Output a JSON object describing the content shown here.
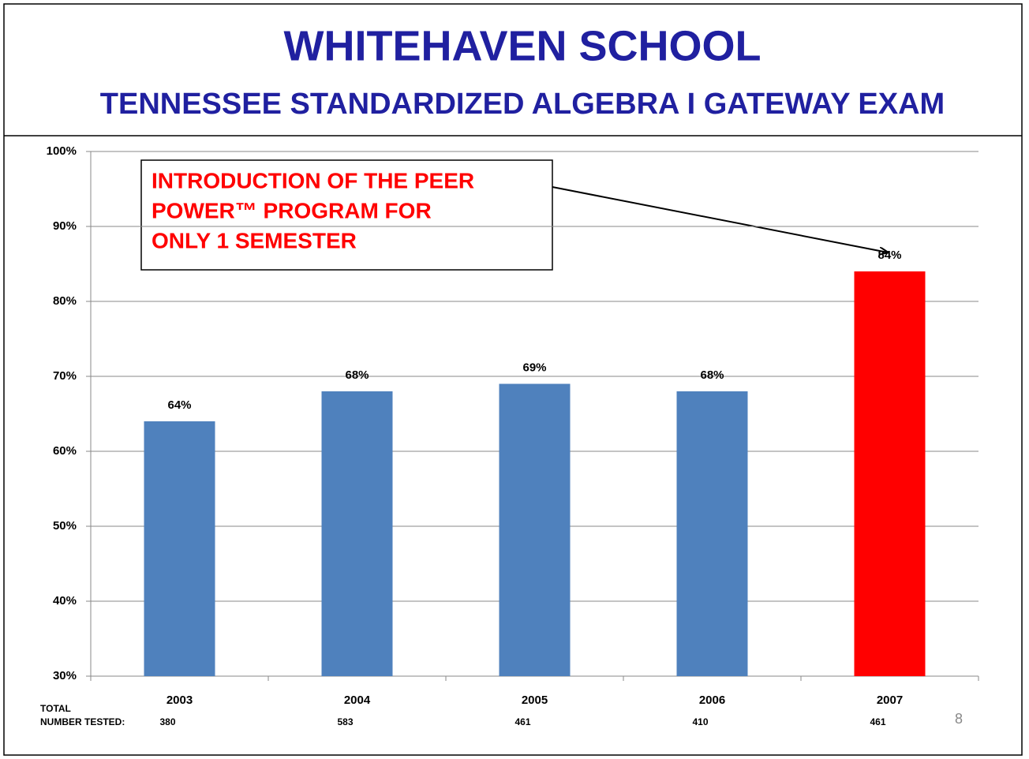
{
  "chart_data": {
    "type": "bar",
    "title": "WHITEHAVEN SCHOOL",
    "subtitle": "TENNESSEE STANDARDIZED ALGEBRA I GATEWAY EXAM",
    "categories": [
      "2003",
      "2004",
      "2005",
      "2006",
      "2007"
    ],
    "values": [
      64,
      68,
      69,
      68,
      84
    ],
    "value_labels": [
      "64%",
      "68%",
      "69%",
      "68%",
      "84%"
    ],
    "colors": [
      "#4f81bd",
      "#4f81bd",
      "#4f81bd",
      "#4f81bd",
      "#ff0000"
    ],
    "ylim": [
      30,
      100
    ],
    "yticks": [
      {
        "value": 30,
        "label": "30%"
      },
      {
        "value": 40,
        "label": "40%"
      },
      {
        "value": 50,
        "label": "50%"
      },
      {
        "value": 60,
        "label": "60%"
      },
      {
        "value": 70,
        "label": "70%"
      },
      {
        "value": 80,
        "label": "80%"
      },
      {
        "value": 90,
        "label": "90%"
      },
      {
        "value": 100,
        "label": "100%"
      }
    ],
    "grid": true,
    "annotation": [
      "INTRODUCTION OF THE PEER",
      "POWER™ PROGRAM FOR",
      "ONLY 1 SEMESTER"
    ],
    "count_label": [
      "TOTAL",
      "NUMBER TESTED:"
    ],
    "counts": [
      380,
      583,
      461,
      410,
      461
    ],
    "page_number": "8"
  }
}
